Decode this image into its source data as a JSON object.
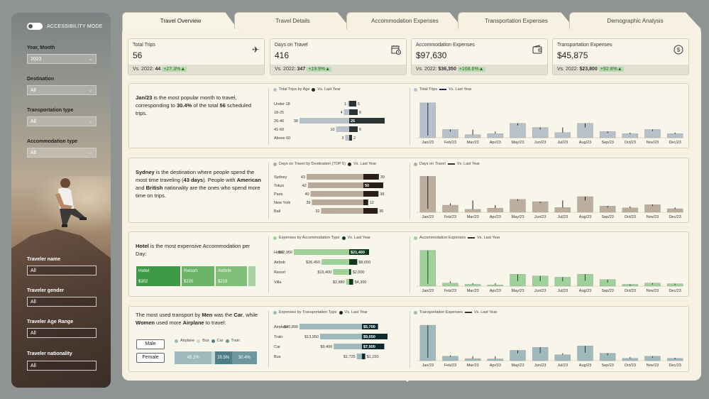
{
  "sidebar": {
    "accessibility_label": "ACCESSIBILITY MODE",
    "filters": [
      {
        "label": "Year, Month",
        "value": "2023"
      },
      {
        "label": "Destination",
        "value": "All"
      },
      {
        "label": "Transportation type",
        "value": "All"
      },
      {
        "label": "Accommodation type",
        "value": "All"
      }
    ],
    "inputs": [
      {
        "label": "Traveler name",
        "value": "All"
      },
      {
        "label": "Traveler gender",
        "value": "All"
      },
      {
        "label": "Traveler Age Range",
        "value": "All"
      },
      {
        "label": "Traveler nationality",
        "value": "All"
      }
    ]
  },
  "tabs": [
    "Travel Overview",
    "Travel Details",
    "Accommodation Expenses",
    "Transportation Expenses",
    "Demographic Analysis"
  ],
  "kpis": [
    {
      "title": "Total Trips",
      "value": "56",
      "icon": "airplane-icon",
      "prev": "Vs. 2022:",
      "prev_val": "44",
      "delta": "+27.3%▲"
    },
    {
      "title": "Days on Travel",
      "value": "416",
      "icon": "calendar-clock-icon",
      "prev": "Vs. 2022:",
      "prev_val": "347",
      "delta": "+19.9%▲"
    },
    {
      "title": "Accommodation Expenses",
      "value": "$97,630",
      "icon": "wallet-icon",
      "prev": "Vs. 2022:",
      "prev_val": "$36,350",
      "delta": "+168.6%▲"
    },
    {
      "title": "Transportation Expenses",
      "value": "$45,875",
      "icon": "dollar-circle-icon",
      "prev": "Vs. 2022:",
      "prev_val": "$23,800",
      "delta": "+92.8%▲"
    }
  ],
  "panels": {
    "p1": {
      "t1": "Jan/23",
      "t2": " is the most popular month to travel, corresponding to ",
      "t3": "30.4%",
      "t4": " of the total ",
      "t5": "56",
      "t6": " scheduled trips."
    },
    "p2": {
      "t1": "Sydney",
      "t2": " is the destination where people spend the most time traveling (",
      "t3": "43 days",
      "t4": "). People with ",
      "t5": "American",
      "t6": " and ",
      "t7": "British",
      "t8": " nationality are the ones who spend more time on trips."
    },
    "p3": {
      "t1": "Hotel",
      "t2": " is the most expensive Accommodation per Day:"
    },
    "p4": {
      "t1": "The most used transport by ",
      "t2": "Men",
      "t3": " was the ",
      "t4": "Car",
      "t5": ", while ",
      "t6": "Women",
      "t7": " used more ",
      "t8": "Airplane",
      "t9": " to travel:"
    }
  },
  "legends": {
    "age": "Total Trips by Age",
    "dest": "Days on Travel by Destination (TOP 5)",
    "acc": "Expenses by Accommodation Type",
    "trans": "Expenses by Transportation Type",
    "vs": "Vs. Last Year",
    "total_trips": "Total Trips",
    "days": "Days on Travel",
    "acc_exp": "Accommodation Expenses",
    "trans_exp": "Transportation Expenses"
  },
  "treemap": [
    {
      "label": "Hotel",
      "value": "$302",
      "color": "#3f9a48"
    },
    {
      "label": "Resort",
      "value": "$220",
      "color": "#6cb36a"
    },
    {
      "label": "Airbnb",
      "value": "$219",
      "color": "#7fbf7a"
    }
  ],
  "transport_legend": [
    "Airplane",
    "Bus",
    "Car",
    "Train"
  ],
  "gender_buttons": [
    "Male",
    "Female"
  ],
  "female_stack": [
    {
      "label": "45.2%",
      "value": 45.2,
      "color": "#9fb9bd"
    },
    {
      "label": "",
      "value": 4,
      "color": "#c9d6d8"
    },
    {
      "label": "20.5%",
      "value": 20.5,
      "color": "#4e7f88"
    },
    {
      "label": "30.4%",
      "value": 30.4,
      "color": "#6f979e"
    }
  ],
  "chart_data": [
    {
      "type": "bar",
      "title": "Total Trips by Age",
      "orientation": "horizontal",
      "categories": [
        "Under 18",
        "18-25",
        "26-40",
        "41-60",
        "Above 60"
      ],
      "series": [
        {
          "name": "Total Trips by Age",
          "values": [
            1,
            4,
            38,
            10,
            3
          ]
        },
        {
          "name": "Vs. Last Year",
          "values": [
            5,
            6,
            25,
            6,
            2
          ]
        }
      ],
      "value_labels": [
        [
          "1",
          "5"
        ],
        [
          "4",
          "6"
        ],
        [
          "38",
          "25"
        ],
        [
          "10",
          "6"
        ],
        [
          "3",
          "2"
        ]
      ]
    },
    {
      "type": "bar",
      "title": "Total Trips",
      "categories": [
        "Jan/23",
        "Feb/23",
        "Mar/23",
        "Apr/23",
        "May/23",
        "Jun/23",
        "Jul/23",
        "Aug/23",
        "Sep/23",
        "Oct/23",
        "Nov/23",
        "Dec/23"
      ],
      "series": [
        {
          "name": "Total Trips",
          "values": [
            17,
            4,
            1.5,
            2,
            7,
            5,
            2.5,
            7,
            3,
            2,
            4,
            2
          ]
        },
        {
          "name": "Vs. Last Year",
          "values": [
            1,
            3,
            4,
            3,
            6,
            4,
            5,
            5,
            3,
            2.5,
            3.5,
            2.5
          ]
        }
      ],
      "ylim": [
        0,
        18
      ]
    },
    {
      "type": "bar",
      "title": "Days on Travel by Destination (TOP 5)",
      "orientation": "horizontal",
      "categories": [
        "Sydney",
        "Tokyo",
        "Paris",
        "New York",
        "Bali"
      ],
      "series": [
        {
          "name": "Days on Travel by Destination (TOP 5)",
          "values": [
            43,
            42,
            40,
            39,
            32
          ]
        },
        {
          "name": "Vs. Last Year",
          "values": [
            39,
            50,
            38,
            12,
            36
          ]
        }
      ]
    },
    {
      "type": "bar",
      "title": "Days on Travel",
      "categories": [
        "Jan/23",
        "Feb/23",
        "Mar/23",
        "Apr/23",
        "May/23",
        "Jun/23",
        "Jul/23",
        "Aug/23",
        "Sep/23",
        "Oct/23",
        "Nov/23",
        "Dec/23"
      ],
      "series": [
        {
          "name": "Days on Travel",
          "values": [
            122,
            24,
            10,
            14,
            44,
            36,
            16,
            53,
            21,
            15,
            26,
            12
          ]
        },
        {
          "name": "Vs. Last Year",
          "values": [
            12,
            30,
            40,
            24,
            40,
            33,
            40,
            40,
            20,
            20,
            24,
            16
          ]
        }
      ],
      "ylim": [
        0,
        125
      ]
    },
    {
      "type": "bar",
      "title": "Expenses by Accommodation Type",
      "orientation": "horizontal",
      "categories": [
        "Hotel",
        "Airbnb",
        "Resort",
        "Villa"
      ],
      "series": [
        {
          "name": "Expenses by Accommodation Type",
          "values": [
            52960,
            26450,
            15400,
            2880
          ]
        },
        {
          "name": "Vs. Last Year",
          "values": [
            21400,
            8650,
            2000,
            4300
          ]
        }
      ],
      "value_labels": [
        [
          "$52,960",
          "$21,400"
        ],
        [
          "$26,450",
          "$8,650"
        ],
        [
          "$15,400",
          "$2,000"
        ],
        [
          "$2,880",
          "$4,300"
        ]
      ]
    },
    {
      "type": "bar",
      "title": "Accommodation Expenses",
      "categories": [
        "Jan/23",
        "Feb/23",
        "Mar/23",
        "Apr/23",
        "May/23",
        "Jun/23",
        "Jul/23",
        "Aug/23",
        "Sep/23",
        "Oct/23",
        "Nov/23",
        "Dec/23"
      ],
      "series": [
        {
          "name": "Accommodation Expenses",
          "values": [
            30000,
            2500,
            1500,
            1000,
            10000,
            8500,
            7500,
            10000,
            5500,
            1500,
            2500,
            2000
          ]
        },
        {
          "name": "Vs. Last Year",
          "values": [
            2000,
            4000,
            2500,
            2500,
            4000,
            4000,
            4000,
            4500,
            3000,
            1500,
            2000,
            1500
          ]
        }
      ],
      "ylim": [
        0,
        31000
      ]
    },
    {
      "type": "bar",
      "title": "Expenses by Transportation Type",
      "orientation": "horizontal",
      "categories": [
        "Airplane",
        "Train",
        "Car",
        "Bus"
      ],
      "series": [
        {
          "name": "Expenses by Transportation Type",
          "values": [
            20800,
            13950,
            9400,
            1725
          ]
        },
        {
          "name": "Vs. Last Year",
          "values": [
            5700,
            9050,
            7900,
            1150
          ]
        }
      ],
      "value_labels": [
        [
          "$20,800",
          "$5,700"
        ],
        [
          "$13,950",
          "$9,050"
        ],
        [
          "$9,400",
          "$7,900"
        ],
        [
          "$1,725",
          "$1,150"
        ]
      ]
    },
    {
      "type": "bar",
      "title": "Transportation Expenses",
      "categories": [
        "Jan/23",
        "Feb/23",
        "Mar/23",
        "Apr/23",
        "May/23",
        "Jun/23",
        "Jul/23",
        "Aug/23",
        "Sep/23",
        "Oct/23",
        "Nov/23",
        "Dec/23"
      ],
      "series": [
        {
          "name": "Transportation Expenses",
          "values": [
            12000,
            1500,
            700,
            600,
            3500,
            4500,
            2000,
            5000,
            2500,
            800,
            1500,
            800
          ]
        },
        {
          "name": "Vs. Last Year",
          "values": [
            1000,
            1800,
            1500,
            1500,
            2500,
            2500,
            2500,
            2700,
            1800,
            1200,
            1500,
            1000
          ]
        }
      ],
      "ylim": [
        0,
        12500
      ]
    }
  ]
}
